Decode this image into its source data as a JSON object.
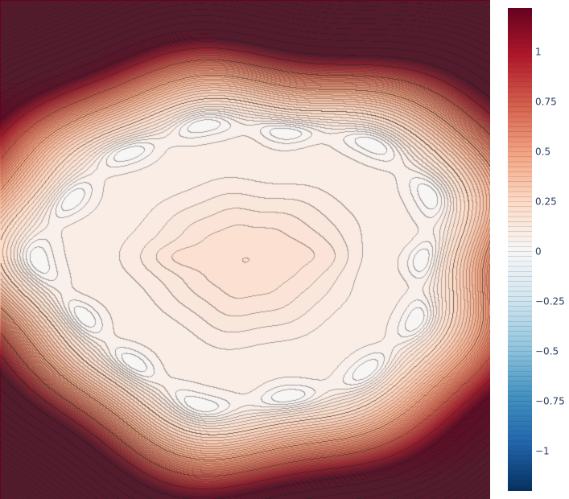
{
  "chart_data": {
    "type": "contour",
    "title": "",
    "xlabel": "",
    "ylabel": "",
    "colorscale": "RdBu (reversed)",
    "colors": {
      "min": "#053061",
      "mid": "#f7f7f7",
      "max": "#67001f",
      "minor_line": "#333333",
      "major_line": "#222222"
    },
    "z_range": [
      -1.2,
      1.22
    ],
    "contour_step": 0.025,
    "field": {
      "center_x": 0.5,
      "center_y": 0.52,
      "ring_level": -0.06,
      "center_value": 0.2,
      "corner_value": 1.1
    },
    "colorbar": {
      "tick_values": [
        1,
        0.75,
        0.5,
        0.25,
        0,
        -0.25,
        -0.5,
        -0.75,
        -1
      ],
      "tick_labels": [
        "1",
        "0.75",
        "0.5",
        "0.25",
        "0",
        "−0.25",
        "−0.5",
        "−0.75",
        "−1"
      ]
    }
  }
}
